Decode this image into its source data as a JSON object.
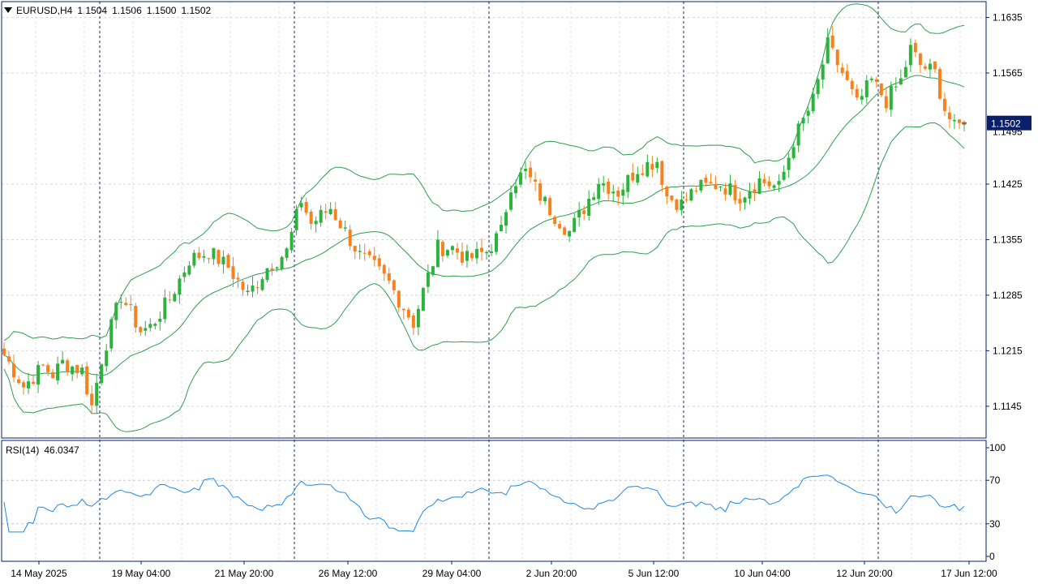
{
  "header": {
    "symbol": "EURUSD,H4",
    "open": "1.1504",
    "high": "1.1506",
    "low": "1.1500",
    "close": "1.1502",
    "collapse_icon": "triangle-down-icon"
  },
  "indicator": {
    "name": "RSI(14)",
    "value": "46.0347"
  },
  "price_badge": "1.1502",
  "colors": {
    "bull": "#2db33d",
    "bear": "#f5821e",
    "bands": "#2e9e4e",
    "rsi": "#1e88e5",
    "badge": "#0a1f6b",
    "axis": "#0a1f6b"
  },
  "chart_data": {
    "type": "candlestick",
    "price_axis": {
      "ticks": [
        "1.1635",
        "1.1565",
        "1.1425",
        "1.1355",
        "1.1285",
        "1.1215",
        "1.1145"
      ],
      "faint_tick": "1.1495",
      "range": [
        1.1105,
        1.1655
      ]
    },
    "rsi_axis": {
      "ticks": [
        "100",
        "70",
        "30",
        "0"
      ],
      "levels": [
        70,
        30
      ]
    },
    "time_labels": [
      "14 May 2025",
      "19 May 04:00",
      "21 May 20:00",
      "26 May 12:00",
      "29 May 04:00",
      "2 Jun 20:00",
      "5 Jun 12:00",
      "10 Jun 04:00",
      "12 Jun 20:00",
      "17 Jun 12:00"
    ],
    "period_separators": 5,
    "grid": true,
    "indicators": [
      "Bollinger Bands",
      "RSI(14)"
    ],
    "anchors": [
      [
        0,
        1.121
      ],
      [
        4,
        1.117
      ],
      [
        8,
        1.1195
      ],
      [
        10,
        1.1185
      ],
      [
        12,
        1.12
      ],
      [
        16,
        1.119
      ],
      [
        18,
        1.1145
      ],
      [
        20,
        1.1205
      ],
      [
        24,
        1.1285
      ],
      [
        28,
        1.124
      ],
      [
        30,
        1.1245
      ],
      [
        34,
        1.128
      ],
      [
        38,
        1.133
      ],
      [
        42,
        1.134
      ],
      [
        46,
        1.132
      ],
      [
        50,
        1.1285
      ],
      [
        54,
        1.132
      ],
      [
        58,
        1.134
      ],
      [
        61,
        1.1405
      ],
      [
        63,
        1.1375
      ],
      [
        67,
        1.1395
      ],
      [
        70,
        1.1365
      ],
      [
        73,
        1.1335
      ],
      [
        76,
        1.132
      ],
      [
        79,
        1.13
      ],
      [
        82,
        1.127
      ],
      [
        84,
        1.125
      ],
      [
        86,
        1.129
      ],
      [
        89,
        1.1345
      ],
      [
        92,
        1.1345
      ],
      [
        95,
        1.133
      ],
      [
        99,
        1.134
      ],
      [
        102,
        1.1365
      ],
      [
        104,
        1.1425
      ],
      [
        107,
        1.144
      ],
      [
        110,
        1.141
      ],
      [
        113,
        1.1385
      ],
      [
        116,
        1.1365
      ],
      [
        119,
        1.1395
      ],
      [
        122,
        1.143
      ],
      [
        126,
        1.1415
      ],
      [
        130,
        1.1445
      ],
      [
        134,
        1.1455
      ],
      [
        136,
        1.141
      ],
      [
        139,
        1.14
      ],
      [
        142,
        1.142
      ],
      [
        147,
        1.1425
      ],
      [
        151,
        1.141
      ],
      [
        155,
        1.143
      ],
      [
        159,
        1.142
      ],
      [
        162,
        1.148
      ],
      [
        166,
        1.153
      ],
      [
        169,
        1.16
      ],
      [
        172,
        1.1565
      ],
      [
        175,
        1.1525
      ],
      [
        178,
        1.1555
      ],
      [
        181,
        1.153
      ],
      [
        184,
        1.1555
      ],
      [
        186,
        1.1595
      ],
      [
        188,
        1.1575
      ],
      [
        191,
        1.1565
      ],
      [
        193,
        1.152
      ],
      [
        195,
        1.1495
      ],
      [
        197,
        1.1502
      ]
    ]
  }
}
